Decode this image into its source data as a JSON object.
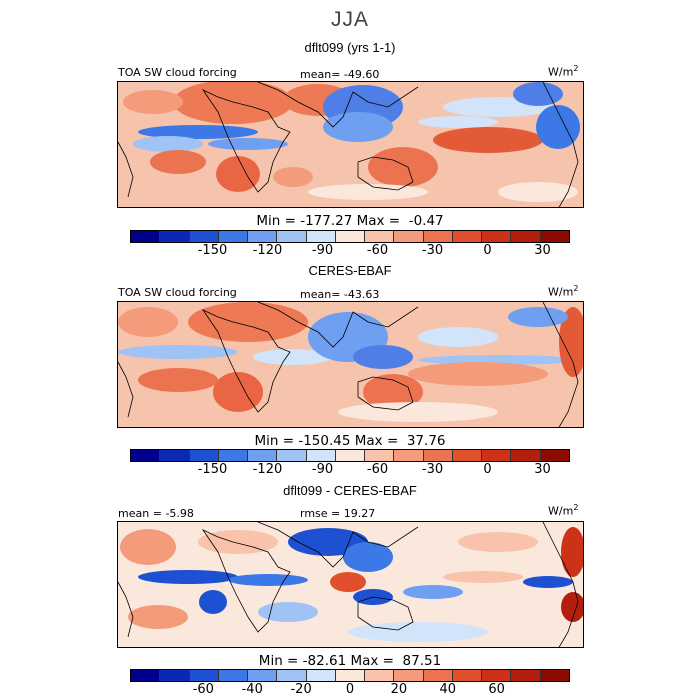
{
  "figure": {
    "season": "JJA"
  },
  "panels": [
    {
      "title": "dflt099 (yrs 1-1)",
      "left_label": "TOA SW cloud forcing",
      "center_label": "mean= -49.60",
      "units": "W/m",
      "units_sup": "2",
      "minmax": "Min = -177.27 Max =  -0.47"
    },
    {
      "title": "CERES-EBAF",
      "left_label": "TOA SW cloud forcing",
      "center_label": "mean= -43.63",
      "units": "W/m",
      "units_sup": "2",
      "minmax": "Min = -150.45 Max =  37.76"
    },
    {
      "title": "dflt099 - CERES-EBAF",
      "left_label": "mean =  -5.98",
      "center_label": "rmse =  19.27",
      "units": "W/m",
      "units_sup": "2",
      "minmax": "Min = -82.61 Max =  87.51"
    }
  ],
  "colorbar_colors": [
    "#00008c",
    "#0a28b4",
    "#1e50d2",
    "#3c78e6",
    "#6e9ff0",
    "#a0c3f5",
    "#d2e4fa",
    "#fbe8dc",
    "#f8c3aa",
    "#f39b7b",
    "#eb7350",
    "#e1502d",
    "#cd3219",
    "#b41e0f",
    "#8c0a00"
  ],
  "chart_data": [
    {
      "type": "heatmap",
      "title": "dflt099 (yrs 1-1)",
      "variable": "TOA SW cloud forcing",
      "units": "W/m2",
      "mean": -49.6,
      "min": -177.27,
      "max": -0.47,
      "colorbar_ticks": [
        "-150",
        "-120",
        "-90",
        "-60",
        "-30",
        "0",
        "30"
      ],
      "colorbar_tick_values": [
        -150,
        -120,
        -90,
        -60,
        -30,
        0,
        30
      ],
      "colorbar_range": [
        -195,
        45
      ]
    },
    {
      "type": "heatmap",
      "title": "CERES-EBAF",
      "variable": "TOA SW cloud forcing",
      "units": "W/m2",
      "mean": -43.63,
      "min": -150.45,
      "max": 37.76,
      "colorbar_ticks": [
        "-150",
        "-120",
        "-90",
        "-60",
        "-30",
        "0",
        "30"
      ],
      "colorbar_tick_values": [
        -150,
        -120,
        -90,
        -60,
        -30,
        0,
        30
      ],
      "colorbar_range": [
        -195,
        45
      ]
    },
    {
      "type": "heatmap",
      "title": "dflt099 - CERES-EBAF",
      "units": "W/m2",
      "mean": -5.98,
      "rmse": 19.27,
      "min": -82.61,
      "max": 87.51,
      "colorbar_ticks": [
        "-60",
        "-40",
        "-20",
        "0",
        "20",
        "40",
        "60"
      ],
      "colorbar_tick_values": [
        -60,
        -40,
        -20,
        0,
        20,
        40,
        60
      ],
      "colorbar_range": [
        -90,
        90
      ]
    }
  ]
}
